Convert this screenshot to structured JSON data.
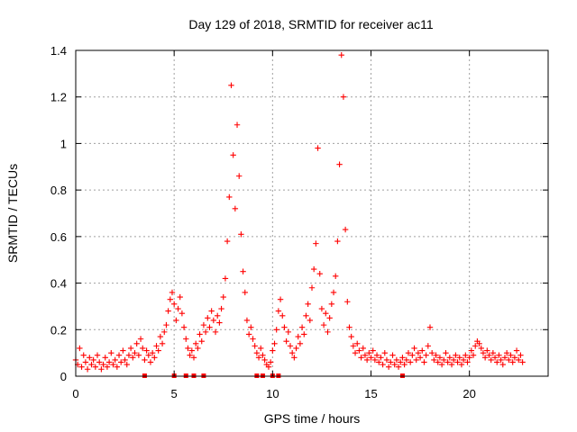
{
  "chart_data": {
    "type": "scatter",
    "title": "Day 129 of 2018, SRMTID for receiver ac11",
    "xlabel": "GPS time / hours",
    "ylabel": "SRMTID / TECUs",
    "xlim": [
      0,
      24
    ],
    "ylim": [
      0,
      1.4
    ],
    "xticks": [
      0,
      5,
      10,
      15,
      20
    ],
    "xtick_labels": [
      "0",
      "5",
      "10",
      "15",
      "20"
    ],
    "yticks": [
      0,
      0.2,
      0.4,
      0.6,
      0.8,
      1,
      1.2,
      1.4
    ],
    "ytick_labels": [
      "0",
      "0.2",
      "0.4",
      "0.6",
      "0.8",
      "1",
      "1.2",
      "1.4"
    ],
    "grid": true,
    "marker": "+",
    "color": "#ff0000",
    "series": [
      {
        "name": "SRMTID",
        "points": [
          [
            0.0,
            0.07
          ],
          [
            0.1,
            0.05
          ],
          [
            0.2,
            0.12
          ],
          [
            0.3,
            0.04
          ],
          [
            0.4,
            0.09
          ],
          [
            0.5,
            0.06
          ],
          [
            0.6,
            0.03
          ],
          [
            0.7,
            0.08
          ],
          [
            0.8,
            0.05
          ],
          [
            0.9,
            0.07
          ],
          [
            1.0,
            0.04
          ],
          [
            1.1,
            0.09
          ],
          [
            1.2,
            0.06
          ],
          [
            1.3,
            0.03
          ],
          [
            1.4,
            0.05
          ],
          [
            1.5,
            0.08
          ],
          [
            1.6,
            0.04
          ],
          [
            1.7,
            0.06
          ],
          [
            1.8,
            0.1
          ],
          [
            1.9,
            0.05
          ],
          [
            2.0,
            0.07
          ],
          [
            2.1,
            0.04
          ],
          [
            2.2,
            0.09
          ],
          [
            2.3,
            0.06
          ],
          [
            2.4,
            0.11
          ],
          [
            2.5,
            0.07
          ],
          [
            2.6,
            0.05
          ],
          [
            2.7,
            0.09
          ],
          [
            2.8,
            0.12
          ],
          [
            2.9,
            0.08
          ],
          [
            3.0,
            0.1
          ],
          [
            3.1,
            0.14
          ],
          [
            3.2,
            0.09
          ],
          [
            3.3,
            0.16
          ],
          [
            3.4,
            0.12
          ],
          [
            3.5,
            0.07
          ],
          [
            3.6,
            0.11
          ],
          [
            3.7,
            0.09
          ],
          [
            3.8,
            0.06
          ],
          [
            3.9,
            0.1
          ],
          [
            4.0,
            0.08
          ],
          [
            4.1,
            0.13
          ],
          [
            4.2,
            0.11
          ],
          [
            4.3,
            0.17
          ],
          [
            4.4,
            0.14
          ],
          [
            4.5,
            0.19
          ],
          [
            4.6,
            0.22
          ],
          [
            4.7,
            0.28
          ],
          [
            4.8,
            0.33
          ],
          [
            4.9,
            0.36
          ],
          [
            5.0,
            0.31
          ],
          [
            5.1,
            0.24
          ],
          [
            5.2,
            0.29
          ],
          [
            5.3,
            0.34
          ],
          [
            5.4,
            0.27
          ],
          [
            5.5,
            0.21
          ],
          [
            5.6,
            0.16
          ],
          [
            5.7,
            0.12
          ],
          [
            5.8,
            0.09
          ],
          [
            5.9,
            0.11
          ],
          [
            6.0,
            0.08
          ],
          [
            6.1,
            0.14
          ],
          [
            6.2,
            0.12
          ],
          [
            6.3,
            0.18
          ],
          [
            6.4,
            0.15
          ],
          [
            6.5,
            0.22
          ],
          [
            6.6,
            0.19
          ],
          [
            6.7,
            0.25
          ],
          [
            6.8,
            0.21
          ],
          [
            6.9,
            0.28
          ],
          [
            7.0,
            0.24
          ],
          [
            7.1,
            0.19
          ],
          [
            7.2,
            0.26
          ],
          [
            7.3,
            0.23
          ],
          [
            7.4,
            0.29
          ],
          [
            7.5,
            0.34
          ],
          [
            7.6,
            0.42
          ],
          [
            7.7,
            0.58
          ],
          [
            7.8,
            0.77
          ],
          [
            7.9,
            1.25
          ],
          [
            8.0,
            0.95
          ],
          [
            8.1,
            0.72
          ],
          [
            8.2,
            1.08
          ],
          [
            8.3,
            0.86
          ],
          [
            8.4,
            0.61
          ],
          [
            8.5,
            0.45
          ],
          [
            8.6,
            0.36
          ],
          [
            8.7,
            0.24
          ],
          [
            8.8,
            0.18
          ],
          [
            8.9,
            0.21
          ],
          [
            9.0,
            0.16
          ],
          [
            9.1,
            0.13
          ],
          [
            9.2,
            0.1
          ],
          [
            9.3,
            0.08
          ],
          [
            9.4,
            0.12
          ],
          [
            9.5,
            0.09
          ],
          [
            9.6,
            0.07
          ],
          [
            9.7,
            0.05
          ],
          [
            9.8,
            0.04
          ],
          [
            9.9,
            0.06
          ],
          [
            10.0,
            0.11
          ],
          [
            10.1,
            0.14
          ],
          [
            10.2,
            0.2
          ],
          [
            10.3,
            0.28
          ],
          [
            10.4,
            0.33
          ],
          [
            10.5,
            0.26
          ],
          [
            10.6,
            0.21
          ],
          [
            10.7,
            0.15
          ],
          [
            10.8,
            0.19
          ],
          [
            10.9,
            0.13
          ],
          [
            11.0,
            0.1
          ],
          [
            11.1,
            0.08
          ],
          [
            11.2,
            0.12
          ],
          [
            11.3,
            0.17
          ],
          [
            11.4,
            0.14
          ],
          [
            11.5,
            0.21
          ],
          [
            11.6,
            0.18
          ],
          [
            11.7,
            0.26
          ],
          [
            11.8,
            0.31
          ],
          [
            11.9,
            0.24
          ],
          [
            12.0,
            0.38
          ],
          [
            12.1,
            0.46
          ],
          [
            12.2,
            0.57
          ],
          [
            12.3,
            0.98
          ],
          [
            12.4,
            0.44
          ],
          [
            12.5,
            0.29
          ],
          [
            12.6,
            0.22
          ],
          [
            12.7,
            0.27
          ],
          [
            12.8,
            0.19
          ],
          [
            12.9,
            0.25
          ],
          [
            13.0,
            0.31
          ],
          [
            13.1,
            0.36
          ],
          [
            13.2,
            0.43
          ],
          [
            13.3,
            0.58
          ],
          [
            13.4,
            0.91
          ],
          [
            13.5,
            1.38
          ],
          [
            13.6,
            1.2
          ],
          [
            13.7,
            0.63
          ],
          [
            13.8,
            0.32
          ],
          [
            13.9,
            0.21
          ],
          [
            14.0,
            0.17
          ],
          [
            14.1,
            0.13
          ],
          [
            14.2,
            0.1
          ],
          [
            14.3,
            0.14
          ],
          [
            14.4,
            0.11
          ],
          [
            14.5,
            0.08
          ],
          [
            14.6,
            0.12
          ],
          [
            14.7,
            0.09
          ],
          [
            14.8,
            0.07
          ],
          [
            14.9,
            0.1
          ],
          [
            15.0,
            0.08
          ],
          [
            15.1,
            0.11
          ],
          [
            15.2,
            0.07
          ],
          [
            15.3,
            0.09
          ],
          [
            15.4,
            0.06
          ],
          [
            15.5,
            0.08
          ],
          [
            15.6,
            0.05
          ],
          [
            15.7,
            0.1
          ],
          [
            15.8,
            0.07
          ],
          [
            15.9,
            0.04
          ],
          [
            16.0,
            0.06
          ],
          [
            16.1,
            0.09
          ],
          [
            16.2,
            0.05
          ],
          [
            16.3,
            0.07
          ],
          [
            16.4,
            0.04
          ],
          [
            16.5,
            0.06
          ],
          [
            16.6,
            0.08
          ],
          [
            16.7,
            0.05
          ],
          [
            16.8,
            0.07
          ],
          [
            16.9,
            0.1
          ],
          [
            17.0,
            0.06
          ],
          [
            17.1,
            0.09
          ],
          [
            17.2,
            0.12
          ],
          [
            17.3,
            0.07
          ],
          [
            17.4,
            0.1
          ],
          [
            17.5,
            0.08
          ],
          [
            17.6,
            0.11
          ],
          [
            17.7,
            0.06
          ],
          [
            17.8,
            0.09
          ],
          [
            17.9,
            0.13
          ],
          [
            18.0,
            0.21
          ],
          [
            18.1,
            0.1
          ],
          [
            18.2,
            0.07
          ],
          [
            18.3,
            0.09
          ],
          [
            18.4,
            0.06
          ],
          [
            18.5,
            0.08
          ],
          [
            18.6,
            0.05
          ],
          [
            18.7,
            0.07
          ],
          [
            18.8,
            0.1
          ],
          [
            18.9,
            0.06
          ],
          [
            19.0,
            0.08
          ],
          [
            19.1,
            0.05
          ],
          [
            19.2,
            0.07
          ],
          [
            19.3,
            0.09
          ],
          [
            19.4,
            0.06
          ],
          [
            19.5,
            0.08
          ],
          [
            19.6,
            0.05
          ],
          [
            19.7,
            0.07
          ],
          [
            19.8,
            0.09
          ],
          [
            19.9,
            0.06
          ],
          [
            20.0,
            0.08
          ],
          [
            20.1,
            0.11
          ],
          [
            20.2,
            0.09
          ],
          [
            20.3,
            0.13
          ],
          [
            20.4,
            0.15
          ],
          [
            20.5,
            0.14
          ],
          [
            20.6,
            0.12
          ],
          [
            20.7,
            0.1
          ],
          [
            20.8,
            0.08
          ],
          [
            20.9,
            0.11
          ],
          [
            21.0,
            0.09
          ],
          [
            21.1,
            0.07
          ],
          [
            21.2,
            0.1
          ],
          [
            21.3,
            0.08
          ],
          [
            21.4,
            0.06
          ],
          [
            21.5,
            0.09
          ],
          [
            21.6,
            0.07
          ],
          [
            21.7,
            0.05
          ],
          [
            21.8,
            0.08
          ],
          [
            21.9,
            0.1
          ],
          [
            22.0,
            0.07
          ],
          [
            22.1,
            0.09
          ],
          [
            22.2,
            0.06
          ],
          [
            22.3,
            0.08
          ],
          [
            22.4,
            0.11
          ],
          [
            22.5,
            0.07
          ],
          [
            22.6,
            0.09
          ],
          [
            22.7,
            0.06
          ]
        ]
      }
    ],
    "zero_points_x": [
      3.5,
      5.0,
      5.6,
      6.0,
      6.5,
      9.2,
      9.5,
      10.0,
      10.3,
      16.6
    ]
  }
}
